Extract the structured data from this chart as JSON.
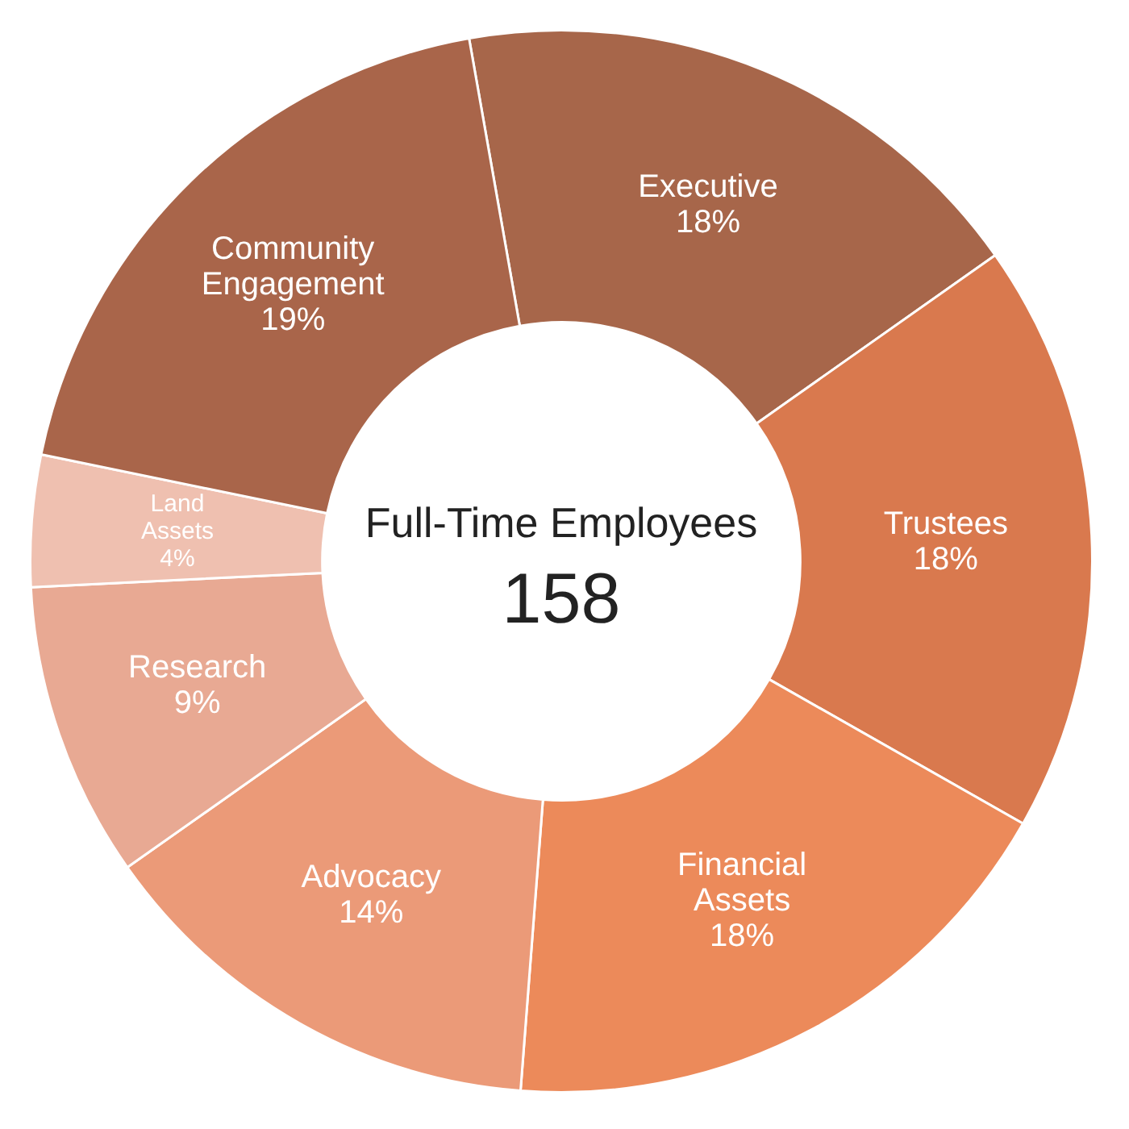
{
  "chart_data": {
    "type": "donut",
    "title": "Full-Time Employees",
    "subtitle": "158",
    "categories": [
      "Executive",
      "Trustees",
      "Financial Assets",
      "Advocacy",
      "Research",
      "Land Assets",
      "Community Engagement"
    ],
    "values": [
      18,
      18,
      18,
      14,
      9,
      4,
      19
    ],
    "value_labels": [
      "18%",
      "18%",
      "18%",
      "14%",
      "9%",
      "4%",
      "19%"
    ],
    "colors": [
      "#a7664a",
      "#d9794e",
      "#ec8a5a",
      "#eb9a78",
      "#e8a993",
      "#efc0b0",
      "#a9654a"
    ],
    "legend": false
  }
}
